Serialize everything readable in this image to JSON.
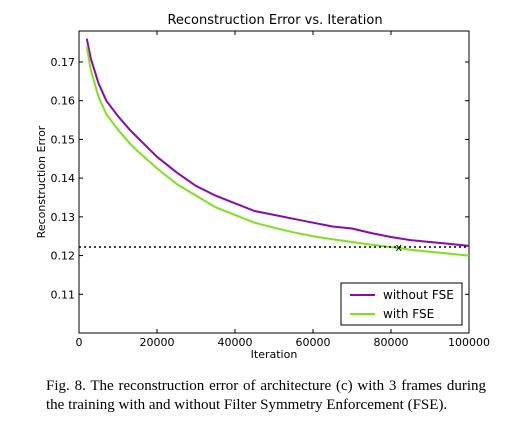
{
  "chart_data": {
    "type": "line",
    "title": "Reconstruction Error  vs. Iteration",
    "xlabel": "Iteration",
    "ylabel": "Reconstruction Error",
    "xlim": [
      0,
      100000
    ],
    "ylim": [
      0.1,
      0.178
    ],
    "xticks": [
      0,
      20000,
      40000,
      60000,
      80000,
      100000
    ],
    "yticks": [
      0.11,
      0.12,
      0.13,
      0.14,
      0.15,
      0.16,
      0.17
    ],
    "grid": false,
    "legend_position": "lower-right",
    "x": [
      2000,
      3000,
      5000,
      7000,
      10000,
      13000,
      15000,
      20000,
      25000,
      30000,
      35000,
      40000,
      45000,
      50000,
      55000,
      60000,
      65000,
      70000,
      75000,
      80000,
      85000,
      90000,
      95000,
      100000
    ],
    "series": [
      {
        "name": "without FSE",
        "color": "#8b0aa5",
        "values": [
          0.176,
          0.171,
          0.1645,
          0.16,
          0.156,
          0.1525,
          0.1505,
          0.1455,
          0.1415,
          0.138,
          0.1355,
          0.1335,
          0.1315,
          0.1305,
          0.1295,
          0.1285,
          0.1275,
          0.127,
          0.1258,
          0.1248,
          0.124,
          0.1235,
          0.123,
          0.1225
        ]
      },
      {
        "name": "with FSE",
        "color": "#7fe020",
        "values": [
          0.174,
          0.168,
          0.161,
          0.1565,
          0.1525,
          0.149,
          0.147,
          0.1425,
          0.1385,
          0.1355,
          0.1325,
          0.1305,
          0.1285,
          0.1272,
          0.126,
          0.125,
          0.1242,
          0.1235,
          0.1228,
          0.1222,
          0.1215,
          0.121,
          0.1205,
          0.12
        ]
      }
    ],
    "reference_line": {
      "y": 0.1222,
      "style": "dotted"
    },
    "marker": {
      "x": 82000,
      "y": 0.1222,
      "label": "x"
    }
  },
  "caption": "Fig. 8. The reconstruction error of architecture (c) with 3 frames during the training with and without Filter Symmetry Enforcement (FSE)."
}
